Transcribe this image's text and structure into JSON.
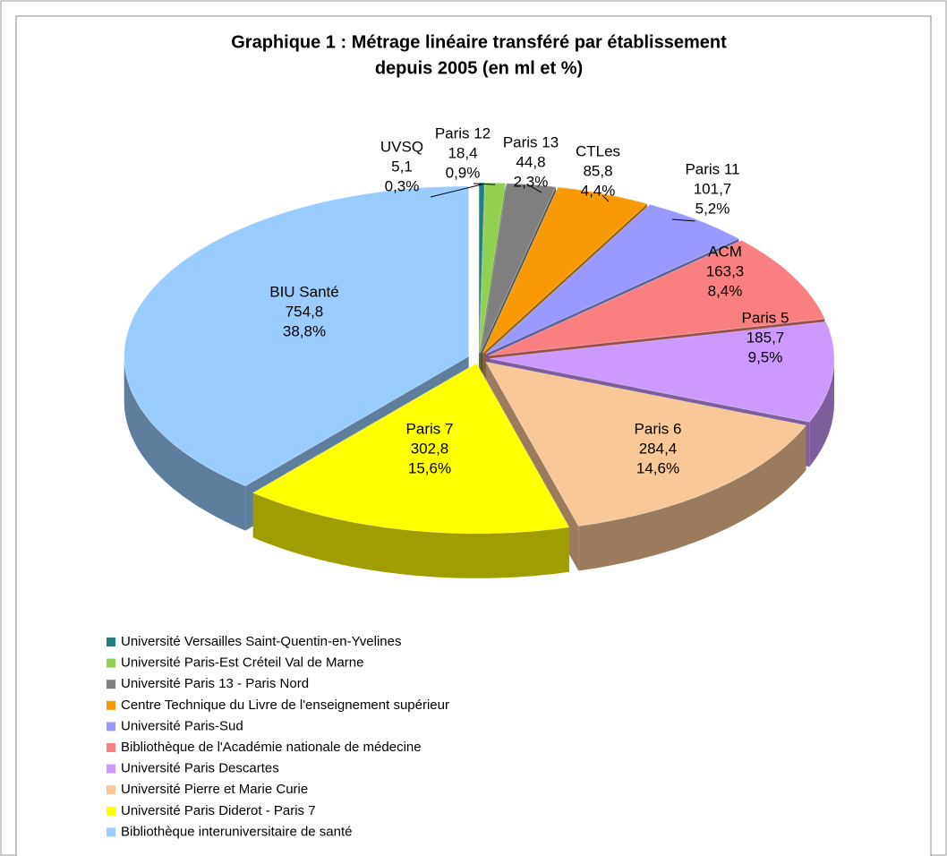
{
  "chart_data": {
    "type": "pie3d",
    "title": [
      "Graphique  1 : Métrage linéaire  transféré par établissement",
      "depuis 2005  (en ml  et %)"
    ],
    "categories": [
      "UVSQ",
      "Paris 12",
      "Paris 13",
      "CTLes",
      "Paris 11",
      "ACM",
      "Paris 5",
      "Paris 6",
      "Paris 7",
      "BIU Santé"
    ],
    "values": [
      5.1,
      18.4,
      44.8,
      85.8,
      101.7,
      163.3,
      185.7,
      284.4,
      302.8,
      754.8
    ],
    "value_labels": [
      "5,1",
      "18,4",
      "44,8",
      "85,8",
      "101,7",
      "163,3",
      "185,7",
      "284,4",
      "302,8",
      "754,8"
    ],
    "percents": [
      0.3,
      0.9,
      2.3,
      4.4,
      5.2,
      8.4,
      9.5,
      14.6,
      15.6,
      38.8
    ],
    "percent_labels": [
      "0,3%",
      "0,9%",
      "2,3%",
      "4,4%",
      "5,2%",
      "8,4%",
      "9,5%",
      "14,6%",
      "15,6%",
      "38,8%"
    ],
    "legend": [
      "Université Versailles Saint-Quentin-en-Yvelines",
      "Université Paris-Est Créteil Val de Marne",
      "Université Paris 13 - Paris Nord",
      "Centre Technique du Livre de l'enseignement supérieur",
      "Université Paris-Sud",
      "Bibliothèque de l'Académie nationale de médecine",
      "Université Paris Descartes",
      "Université Pierre et Marie Curie",
      "Université Paris Diderot - Paris 7",
      "Bibliothèque interuniversitaire de santé"
    ],
    "colors": [
      "#1f8080",
      "#92d050",
      "#7f7f7f",
      "#f79a06",
      "#9999ff",
      "#f88080",
      "#cc99ff",
      "#f9c896",
      "#ffff00",
      "#99ccff"
    ],
    "legend_position": "bottom"
  }
}
